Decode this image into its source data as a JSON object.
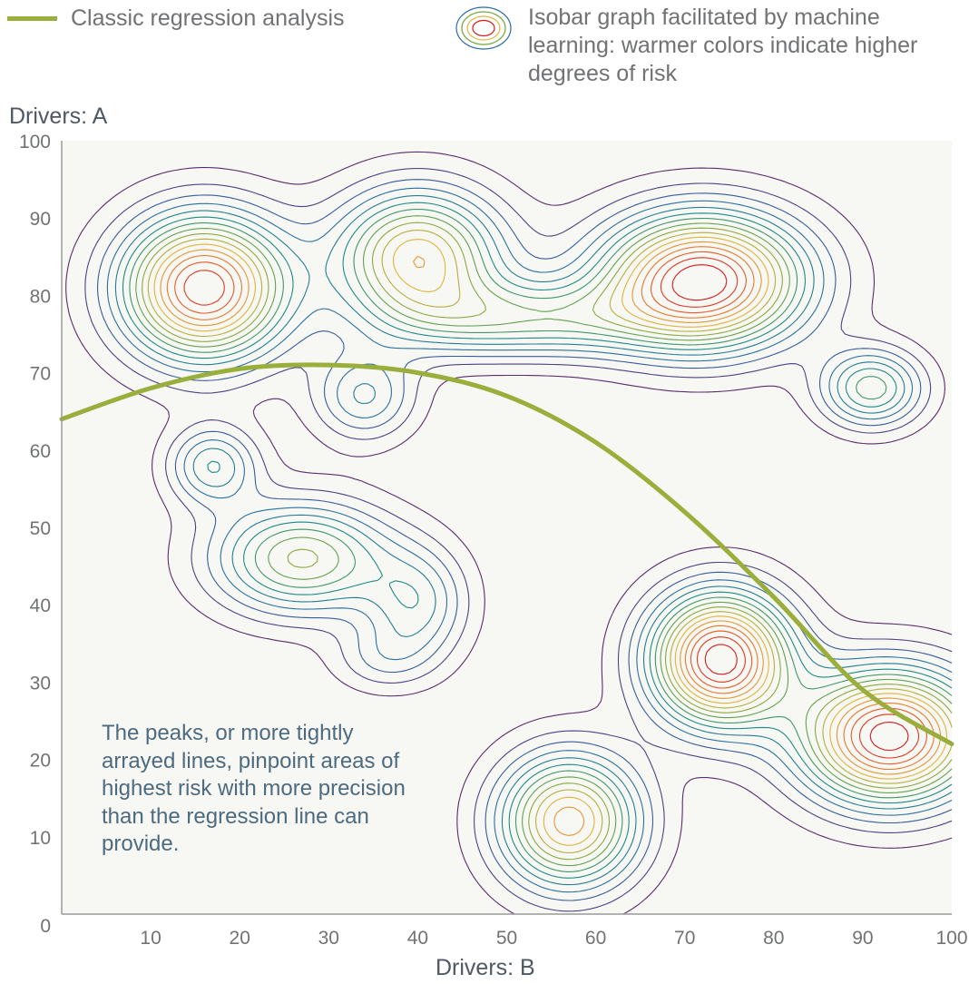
{
  "legend": {
    "regression_label": "Classic regression analysis",
    "isobar_label": "Isobar graph facilitated by machine learning: warmer colors indicate higher degrees of risk",
    "regression_color": "#9aae3c"
  },
  "chart_data": {
    "type": "contour",
    "xlabel": "Drivers: B",
    "ylabel": "Drivers: A",
    "xlim": [
      0,
      100
    ],
    "ylim": [
      0,
      100
    ],
    "x_ticks": [
      10,
      20,
      30,
      40,
      50,
      60,
      70,
      80,
      90,
      100
    ],
    "y_ticks": [
      0,
      10,
      20,
      30,
      40,
      50,
      60,
      70,
      80,
      90,
      100
    ],
    "grid": false,
    "background": "#f7f7f3",
    "annotation": "The peaks, or more tightly arrayed lines, pinpoint areas of highest risk with more precision than the regression line can provide.",
    "regression_line": {
      "color": "#9aae3c",
      "points": [
        [
          0,
          64
        ],
        [
          10,
          68
        ],
        [
          20,
          70.5
        ],
        [
          30,
          71
        ],
        [
          40,
          70
        ],
        [
          50,
          67
        ],
        [
          60,
          61
        ],
        [
          70,
          52
        ],
        [
          80,
          41
        ],
        [
          90,
          29
        ],
        [
          100,
          22
        ]
      ]
    },
    "risk_peaks": [
      {
        "x": 16,
        "y": 81,
        "sx": 6.5,
        "sy": 6.5,
        "w": 0.95
      },
      {
        "x": 40,
        "y": 85,
        "sx": 6.5,
        "sy": 6,
        "w": 0.7
      },
      {
        "x": 72,
        "y": 82,
        "sx": 8,
        "sy": 6,
        "w": 1.0
      },
      {
        "x": 52,
        "y": 77,
        "sx": 10,
        "sy": 3.5,
        "w": 0.4
      },
      {
        "x": 91,
        "y": 68,
        "sx": 4,
        "sy": 3.5,
        "w": 0.45
      },
      {
        "x": 34,
        "y": 67,
        "sx": 4,
        "sy": 4,
        "w": 0.3
      },
      {
        "x": 17,
        "y": 58,
        "sx": 3.5,
        "sy": 3.5,
        "w": 0.35
      },
      {
        "x": 27,
        "y": 46,
        "sx": 7,
        "sy": 5,
        "w": 0.55
      },
      {
        "x": 40,
        "y": 40,
        "sx": 4,
        "sy": 5,
        "w": 0.3
      },
      {
        "x": 36,
        "y": 33,
        "sx": 4,
        "sy": 3,
        "w": 0.15
      },
      {
        "x": 74,
        "y": 33,
        "sx": 5.5,
        "sy": 6,
        "w": 1.0
      },
      {
        "x": 93,
        "y": 23,
        "sx": 7,
        "sy": 6,
        "w": 1.0
      },
      {
        "x": 57,
        "y": 12,
        "sx": 5.5,
        "sy": 6,
        "w": 0.75
      }
    ],
    "contour_color_scale": [
      "#5b2b6c",
      "#2d6aa8",
      "#1d8a86",
      "#73a840",
      "#e0b43a",
      "#ea6a2a",
      "#d7191c"
    ]
  }
}
